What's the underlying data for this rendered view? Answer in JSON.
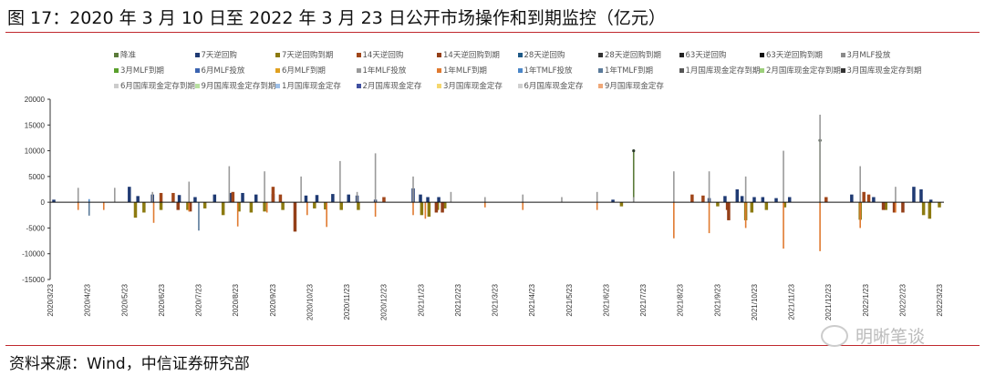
{
  "title": "图 17：2020 年 3 月 10 日至 2022 年 3 月 23 日公开市场操作和到期监控（亿元）",
  "source": "资料来源：Wind，中信证券研究部",
  "watermark": "明晰笔谈",
  "chart_data": {
    "type": "bar",
    "title": "",
    "xlabel": "",
    "ylabel": "",
    "ylim": [
      -15000,
      20000
    ],
    "yticks": [
      "20000",
      "15000",
      "10000",
      "5000",
      "0",
      "-5000",
      "-10000",
      "-15000"
    ],
    "xrange": [
      "2020-03-23",
      "2022-03-23"
    ],
    "xticks": [
      "2020/3/23",
      "2020/4/23",
      "2020/5/23",
      "2020/6/23",
      "2020/7/23",
      "2020/8/23",
      "2020/9/23",
      "2020/10/23",
      "2020/11/23",
      "2020/12/23",
      "2021/1/23",
      "2021/2/23",
      "2021/3/23",
      "2021/4/23",
      "2021/5/23",
      "2021/6/23",
      "2021/7/23",
      "2021/8/23",
      "2021/9/23",
      "2021/10/23",
      "2021/11/23",
      "2021/12/23",
      "2022/1/23",
      "2022/2/23",
      "2022/3/23"
    ],
    "grid": false,
    "legend_position": "top",
    "series": [
      {
        "name": "降准",
        "color": "#5b7b3a",
        "values": [
          [
            "2021-07-15",
            10000
          ],
          [
            "2021-12-15",
            12000
          ]
        ]
      },
      {
        "name": "7天逆回购",
        "color": "#1f3a73",
        "values": [
          [
            "2020-03-26",
            500
          ],
          [
            "2020-05-27",
            3000
          ],
          [
            "2020-06-03",
            1200
          ],
          [
            "2020-06-15",
            1500
          ],
          [
            "2020-07-07",
            1400
          ],
          [
            "2020-07-20",
            1000
          ],
          [
            "2020-08-05",
            1500
          ],
          [
            "2020-08-18",
            1800
          ],
          [
            "2020-08-28",
            1800
          ],
          [
            "2020-09-08",
            1500
          ],
          [
            "2020-09-22",
            1600
          ],
          [
            "2020-10-19",
            1300
          ],
          [
            "2020-10-28",
            1400
          ],
          [
            "2020-11-10",
            1600
          ],
          [
            "2020-11-23",
            1500
          ],
          [
            "2020-11-30",
            1300
          ],
          [
            "2020-12-15",
            500
          ],
          [
            "2021-01-15",
            2700
          ],
          [
            "2021-01-21",
            1500
          ],
          [
            "2021-01-27",
            1000
          ],
          [
            "2021-02-05",
            1000
          ],
          [
            "2021-06-28",
            500
          ],
          [
            "2021-09-15",
            800
          ],
          [
            "2021-09-28",
            1200
          ],
          [
            "2021-10-08",
            2500
          ],
          [
            "2021-10-12",
            1200
          ],
          [
            "2021-10-22",
            1000
          ],
          [
            "2021-10-29",
            1000
          ],
          [
            "2021-11-09",
            800
          ],
          [
            "2021-11-20",
            1000
          ],
          [
            "2022-01-10",
            1500
          ],
          [
            "2022-01-28",
            1000
          ],
          [
            "2022-03-02",
            3000
          ],
          [
            "2022-03-08",
            2500
          ],
          [
            "2022-03-16",
            500
          ]
        ]
      },
      {
        "name": "7天逆回购到期",
        "color": "#8c7a10",
        "values": [
          [
            "2020-06-01",
            -3000
          ],
          [
            "2020-06-08",
            -2000
          ],
          [
            "2020-06-22",
            -1500
          ],
          [
            "2020-07-14",
            -1500
          ],
          [
            "2020-07-28",
            -1200
          ],
          [
            "2020-08-12",
            -2500
          ],
          [
            "2020-08-25",
            -1800
          ],
          [
            "2020-09-04",
            -2000
          ],
          [
            "2020-09-15",
            -1800
          ],
          [
            "2020-09-30",
            -1500
          ],
          [
            "2020-10-26",
            -1200
          ],
          [
            "2020-11-04",
            -1400
          ],
          [
            "2020-11-17",
            -1500
          ],
          [
            "2020-12-01",
            -1500
          ],
          [
            "2021-01-22",
            -2500
          ],
          [
            "2021-01-28",
            -2800
          ],
          [
            "2021-02-04",
            -1500
          ],
          [
            "2021-02-10",
            -1200
          ],
          [
            "2021-07-05",
            -800
          ],
          [
            "2021-09-22",
            -800
          ],
          [
            "2021-10-15",
            -3500
          ],
          [
            "2021-10-20",
            -2000
          ],
          [
            "2021-11-01",
            -1500
          ],
          [
            "2021-11-16",
            -1000
          ],
          [
            "2022-01-17",
            -3400
          ],
          [
            "2022-02-07",
            -1500
          ],
          [
            "2022-03-10",
            -2500
          ],
          [
            "2022-03-15",
            -3200
          ],
          [
            "2022-03-23",
            -1000
          ]
        ]
      },
      {
        "name": "14天逆回购",
        "color": "#a0461a",
        "values": [
          [
            "2020-06-22",
            1800
          ],
          [
            "2020-07-02",
            1800
          ],
          [
            "2020-08-20",
            2000
          ],
          [
            "2020-09-22",
            3000
          ],
          [
            "2020-09-28",
            1500
          ],
          [
            "2020-12-22",
            1000
          ],
          [
            "2021-09-01",
            1500
          ],
          [
            "2021-09-10",
            1300
          ],
          [
            "2021-12-20",
            1000
          ],
          [
            "2022-01-20",
            2000
          ],
          [
            "2022-01-24",
            1500
          ]
        ]
      },
      {
        "name": "14天逆回购到期",
        "color": "#943f18",
        "values": [
          [
            "2020-07-06",
            -1500
          ],
          [
            "2020-07-16",
            -1800
          ],
          [
            "2020-10-10",
            -5700
          ],
          [
            "2021-02-03",
            -2000
          ],
          [
            "2021-02-08",
            -2000
          ],
          [
            "2021-09-30",
            -1500
          ],
          [
            "2021-10-01",
            -3500
          ],
          [
            "2022-02-05",
            -1500
          ],
          [
            "2022-02-14",
            -2000
          ],
          [
            "2022-02-21",
            -2000
          ]
        ]
      },
      {
        "name": "28天逆回购",
        "color": "#1f5a87",
        "values": []
      },
      {
        "name": "28天逆回购到期",
        "color": "#333333",
        "values": []
      },
      {
        "name": "63天逆回购",
        "color": "#222222",
        "values": []
      },
      {
        "name": "63天逆回购到期",
        "color": "#111111",
        "values": []
      },
      {
        "name": "3月MLF投放",
        "color": "#8a8a8a",
        "values": []
      },
      {
        "name": "3月MLF到期",
        "color": "#5aa02c",
        "values": []
      },
      {
        "name": "6月MLF投放",
        "color": "#3b64b0",
        "values": []
      },
      {
        "name": "6月MLF到期",
        "color": "#e0a020",
        "values": []
      },
      {
        "name": "1年MLF投放",
        "color": "#9a9a9a",
        "values": [
          [
            "2020-04-15",
            2800
          ],
          [
            "2020-05-15",
            2800
          ],
          [
            "2020-06-15",
            2000
          ],
          [
            "2020-07-15",
            4000
          ],
          [
            "2020-08-17",
            7000
          ],
          [
            "2020-09-15",
            6000
          ],
          [
            "2020-10-15",
            5000
          ],
          [
            "2020-11-16",
            8000
          ],
          [
            "2020-11-30",
            2000
          ],
          [
            "2020-12-15",
            9500
          ],
          [
            "2021-01-15",
            5000
          ],
          [
            "2021-02-15",
            2000
          ],
          [
            "2021-03-15",
            1000
          ],
          [
            "2021-04-15",
            1500
          ],
          [
            "2021-05-17",
            1000
          ],
          [
            "2021-06-15",
            2000
          ],
          [
            "2021-07-15",
            1000
          ],
          [
            "2021-08-17",
            6000
          ],
          [
            "2021-09-15",
            6000
          ],
          [
            "2021-10-15",
            5000
          ],
          [
            "2021-11-15",
            10000
          ],
          [
            "2021-12-15",
            17000
          ],
          [
            "2022-01-17",
            7000
          ],
          [
            "2022-02-15",
            3000
          ]
        ]
      },
      {
        "name": "1年MLF到期",
        "color": "#e07a30",
        "values": [
          [
            "2020-04-15",
            -1500
          ],
          [
            "2020-05-06",
            -1500
          ],
          [
            "2020-06-16",
            -4000
          ],
          [
            "2020-07-15",
            -1800
          ],
          [
            "2020-08-24",
            -4700
          ],
          [
            "2020-09-17",
            -2000
          ],
          [
            "2020-10-20",
            -2500
          ],
          [
            "2020-11-05",
            -4800
          ],
          [
            "2020-12-15",
            -2800
          ],
          [
            "2021-01-15",
            -2500
          ],
          [
            "2021-01-25",
            -3200
          ],
          [
            "2021-03-15",
            -1000
          ],
          [
            "2021-04-15",
            -1500
          ],
          [
            "2021-06-15",
            -1500
          ],
          [
            "2021-08-17",
            -7000
          ],
          [
            "2021-09-15",
            -6000
          ],
          [
            "2021-10-15",
            -5000
          ],
          [
            "2021-11-15",
            -9000
          ],
          [
            "2021-12-15",
            -9500
          ],
          [
            "2022-01-17",
            -5000
          ],
          [
            "2022-02-15",
            -2000
          ]
        ]
      },
      {
        "name": "1年TMLF投放",
        "color": "#4a86c8",
        "values": [
          [
            "2020-04-24",
            600
          ]
        ]
      },
      {
        "name": "1年TMLF到期",
        "color": "#5a7a9a",
        "values": [
          [
            "2020-04-24",
            -2600
          ],
          [
            "2020-07-23",
            -5500
          ]
        ]
      },
      {
        "name": "1月国库现金定存到期",
        "color": "#555555",
        "values": []
      },
      {
        "name": "2月国库现金定存到期",
        "color": "#9ccf7a",
        "values": []
      },
      {
        "name": "3月国库现金定存到期",
        "color": "#333333",
        "values": []
      },
      {
        "name": "6月国库现金定存到期",
        "color": "#cccccc",
        "values": []
      },
      {
        "name": "9月国库现金定存到期",
        "color": "#b8e0a0",
        "values": []
      },
      {
        "name": "1月国库现金定存",
        "color": "#9ec0e8",
        "values": []
      },
      {
        "name": "2月国库现金定存",
        "color": "#4050a0",
        "values": []
      },
      {
        "name": "3月国库现金定存",
        "color": "#f5d76e",
        "values": []
      },
      {
        "name": "6月国库现金定存",
        "color": "#d0d0d0",
        "values": []
      },
      {
        "name": "9月国库现金定存",
        "color": "#f0a878",
        "values": []
      }
    ]
  }
}
